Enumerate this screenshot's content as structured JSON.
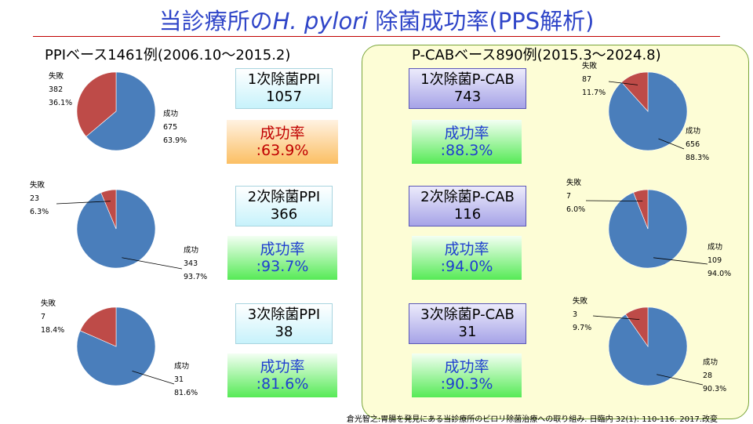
{
  "title": {
    "prefix": "当診療所の",
    "italic": "H. pylori",
    "suffix": "除菌成功率(PPS解析)"
  },
  "left_title": "PPIベース1461例(2006.10～2015.2)",
  "right_title": "P-CABベース890例(2015.3～2024.8)",
  "boxes": {
    "ppi1": {
      "name": "1次除菌PPI",
      "count": "1057"
    },
    "ppi2": {
      "name": "2次除菌PPI",
      "count": "366"
    },
    "ppi3": {
      "name": "3次除菌PPI",
      "count": "38"
    },
    "pcab1": {
      "name": "1次除菌P-CAB",
      "count": "743"
    },
    "pcab2": {
      "name": "2次除菌P-CAB",
      "count": "116"
    },
    "pcab3": {
      "name": "3次除菌P-CAB",
      "count": "31"
    }
  },
  "rates": {
    "label": "成功率",
    "ppi1": ":63.9%",
    "ppi2": ":93.7%",
    "ppi3": ":81.6%",
    "pcab1": ":88.3%",
    "pcab2": ":94.0%",
    "pcab3": ":90.3%"
  },
  "colors": {
    "success": "#4a7ebb",
    "failure": "#be4b48"
  },
  "footnote": "倉光智之:胃腸を発見にある当診療所のピロリ除菌治療への取り組み. 日臨内 32(1): 110-116. 2017.改変",
  "chart_data": [
    {
      "type": "pie",
      "group": "PPI 1次",
      "categories": [
        "成功",
        "失敗"
      ],
      "values": [
        675,
        382
      ],
      "percent_labels": [
        "63.9%",
        "36.1%"
      ]
    },
    {
      "type": "pie",
      "group": "PPI 2次",
      "categories": [
        "成功",
        "失敗"
      ],
      "values": [
        343,
        23
      ],
      "percent_labels": [
        "93.7%",
        "6.3%"
      ]
    },
    {
      "type": "pie",
      "group": "PPI 3次",
      "categories": [
        "成功",
        "失敗"
      ],
      "values": [
        31,
        7
      ],
      "percent_labels": [
        "81.6%",
        "18.4%"
      ]
    },
    {
      "type": "pie",
      "group": "P-CAB 1次",
      "categories": [
        "成功",
        "失敗"
      ],
      "values": [
        656,
        87
      ],
      "percent_labels": [
        "88.3%",
        "11.7%"
      ]
    },
    {
      "type": "pie",
      "group": "P-CAB 2次",
      "categories": [
        "成功",
        "失敗"
      ],
      "values": [
        109,
        7
      ],
      "percent_labels": [
        "94.0%",
        "6.0%"
      ]
    },
    {
      "type": "pie",
      "group": "P-CAB 3次",
      "categories": [
        "成功",
        "失敗"
      ],
      "values": [
        28,
        3
      ],
      "percent_labels": [
        "90.3%",
        "9.7%"
      ]
    }
  ]
}
